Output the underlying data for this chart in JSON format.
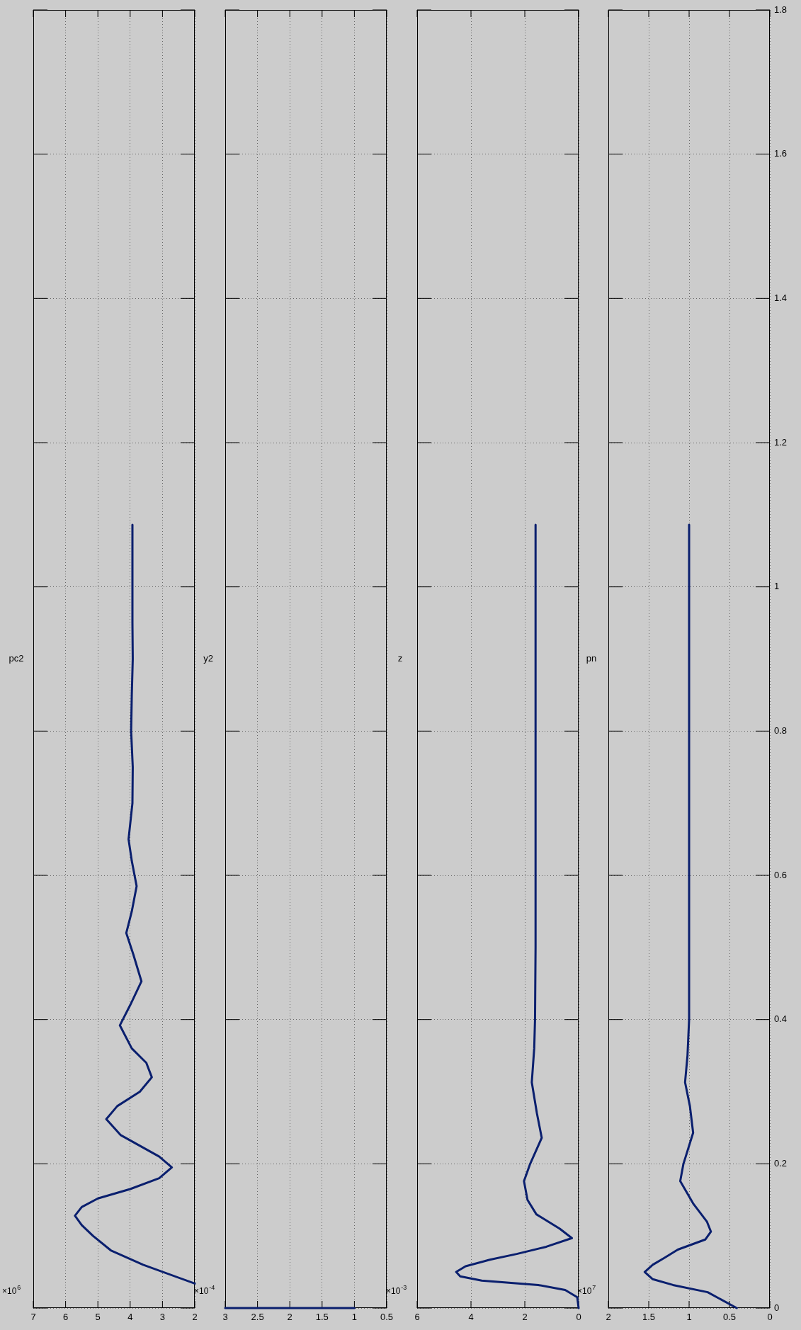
{
  "chart_data": [
    {
      "type": "line",
      "title": "pc2",
      "annotations": [
        "×10$^{6}$"
      ],
      "ylim": [
        0,
        1.8
      ],
      "yticks": [
        0,
        0.2,
        0.4,
        0.6,
        0.8,
        1,
        1.2,
        1.4,
        1.6,
        1.8
      ],
      "xlim": [
        7,
        2
      ],
      "xticks": [
        2,
        3,
        4,
        5,
        6,
        7
      ],
      "grid": true,
      "tick_labels": "x",
      "series": [
        {
          "color": "#0a1f6e",
          "values": [
            0.034,
            0.06,
            0.08,
            0.1,
            0.115,
            0.128,
            0.14,
            0.152,
            0.165,
            0.18,
            0.195,
            0.21,
            0.225,
            0.24,
            0.262,
            0.28,
            0.3,
            0.32,
            0.34,
            0.36,
            0.392,
            0.42,
            0.453,
            0.49,
            0.52,
            0.55,
            0.585,
            0.62,
            0.65,
            0.7,
            0.75,
            0.8,
            0.85,
            0.9,
            0.95,
            1.086
          ],
          "x": [
            2,
            3.6,
            4.6,
            5.15,
            5.5,
            5.71,
            5.5,
            5.0,
            4.0,
            3.1,
            2.71,
            3.1,
            3.7,
            4.3,
            4.74,
            4.4,
            3.7,
            3.33,
            3.5,
            3.95,
            4.32,
            4.0,
            3.65,
            3.9,
            4.12,
            3.95,
            3.8,
            3.95,
            4.05,
            3.93,
            3.92,
            3.97,
            3.95,
            3.92,
            3.93,
            3.93
          ]
        }
      ]
    },
    {
      "type": "line",
      "title": "y2",
      "annotations": [
        "×10$^{-4}$"
      ],
      "ylim": [
        0,
        1.8
      ],
      "yticks": [
        0,
        0.2,
        0.4,
        0.6,
        0.8,
        1,
        1.2,
        1.4,
        1.6,
        1.8
      ],
      "xlim": [
        3,
        0.5
      ],
      "xticks": [
        0.5,
        1,
        1.5,
        2,
        2.5,
        3
      ],
      "grid": true,
      "tick_labels": "x",
      "series": [
        {
          "color": "#0a1f6e",
          "values": [
            0,
            0
          ],
          "x": [
            3,
            1
          ]
        }
      ]
    },
    {
      "type": "line",
      "title": "z",
      "annotations": [
        "×10$^{-3}$"
      ],
      "ylim": [
        0,
        1.8
      ],
      "yticks": [
        0,
        0.2,
        0.4,
        0.6,
        0.8,
        1,
        1.2,
        1.4,
        1.6,
        1.8
      ],
      "xlim": [
        6,
        0
      ],
      "xticks": [
        0,
        2,
        4,
        6
      ],
      "grid": true,
      "tick_labels": "x",
      "series": [
        {
          "color": "#0a1f6e",
          "values": [
            0,
            0.015,
            0.025,
            0.032,
            0.038,
            0.044,
            0.05,
            0.058,
            0.067,
            0.075,
            0.085,
            0.097,
            0.11,
            0.13,
            0.15,
            0.176,
            0.2,
            0.236,
            0.27,
            0.313,
            0.36,
            0.4,
            0.5,
            1.086
          ],
          "x": [
            0,
            0.05,
            0.5,
            1.5,
            3.6,
            4.4,
            4.55,
            4.2,
            3.3,
            2.3,
            1.2,
            0.25,
            0.7,
            1.57,
            1.9,
            2.03,
            1.8,
            1.37,
            1.55,
            1.74,
            1.65,
            1.62,
            1.6,
            1.6
          ]
        }
      ]
    },
    {
      "type": "line",
      "title": "pn",
      "annotations": [
        "×10$^{7}$"
      ],
      "ylim": [
        0,
        1.8
      ],
      "yticks": [
        0,
        0.2,
        0.4,
        0.6,
        0.8,
        1,
        1.2,
        1.4,
        1.6,
        1.8
      ],
      "xlim": [
        2,
        0
      ],
      "xticks": [
        0,
        0.5,
        1,
        1.5,
        2
      ],
      "grid": true,
      "series": [
        {
          "color": "#0a1f6e",
          "values": [
            0,
            0.022,
            0.032,
            0.04,
            0.05,
            0.06,
            0.07,
            0.081,
            0.095,
            0.106,
            0.12,
            0.145,
            0.176,
            0.2,
            0.243,
            0.28,
            0.313,
            0.35,
            0.4,
            1.086
          ],
          "x": [
            0.41,
            0.77,
            1.2,
            1.45,
            1.55,
            1.45,
            1.3,
            1.14,
            0.8,
            0.73,
            0.78,
            0.95,
            1.11,
            1.07,
            0.95,
            0.99,
            1.05,
            1.02,
            1.0,
            1.0
          ]
        }
      ]
    }
  ]
}
